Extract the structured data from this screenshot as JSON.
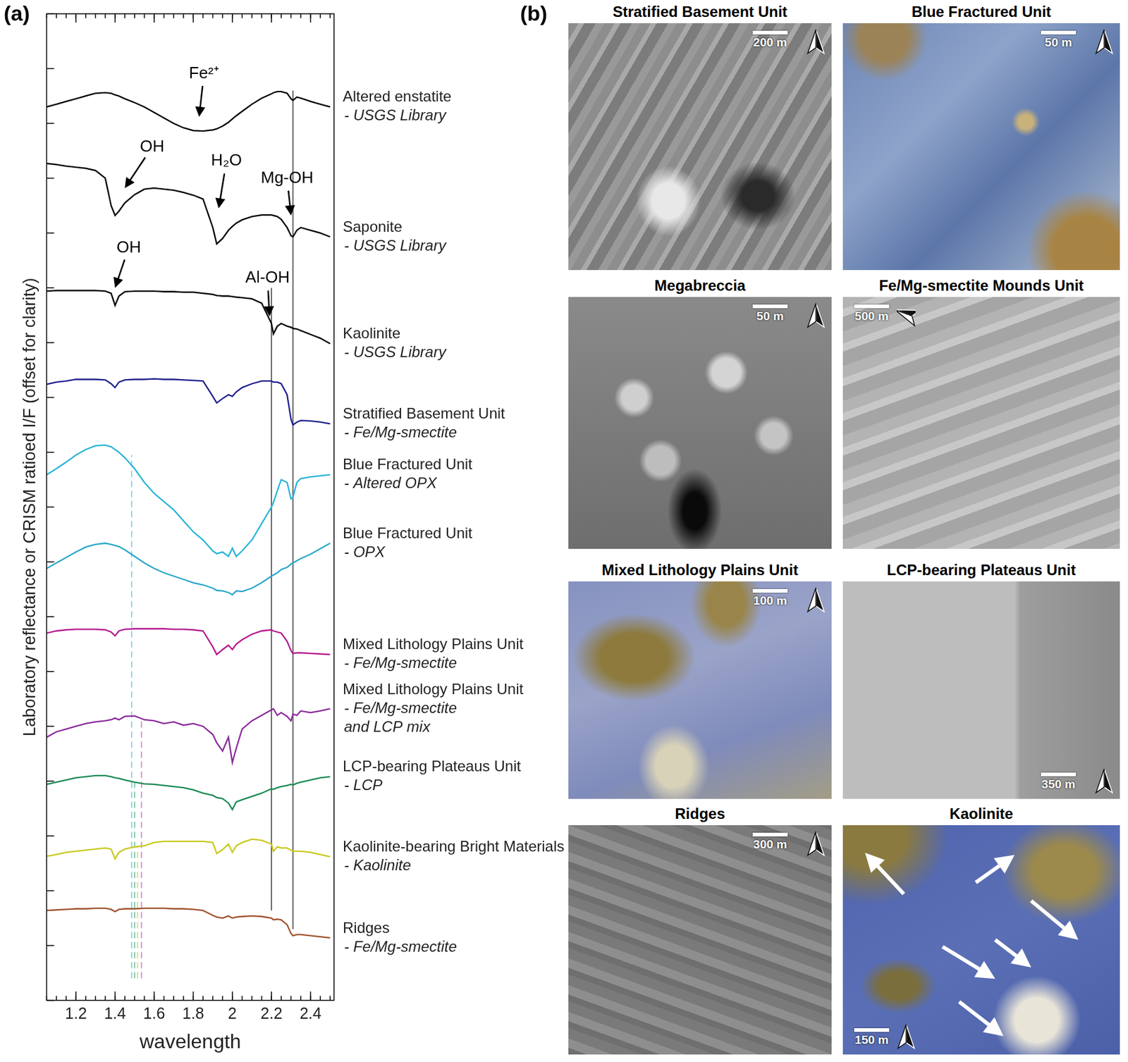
{
  "panel_labels": [
    "(a)",
    "(b)"
  ],
  "chart_data": {
    "type": "line",
    "x_label": "wavelength",
    "y_label": "Laboratory reflectance or CRISM ratioed I/F (offset for clarity)",
    "xlim": [
      1.05,
      2.52
    ],
    "xticks": [
      1.2,
      1.4,
      1.6,
      1.8,
      2.0,
      2.2,
      2.4
    ],
    "ylim": [
      0,
      18
    ],
    "yticks": [
      0,
      1,
      2,
      3,
      4,
      5,
      6,
      7,
      8,
      9,
      10,
      11,
      12,
      13,
      14,
      15,
      16,
      17,
      18
    ],
    "tick_labels": "x",
    "grid": false,
    "x": [
      1.05,
      1.1,
      1.15,
      1.2,
      1.25,
      1.3,
      1.35,
      1.38,
      1.4,
      1.42,
      1.45,
      1.5,
      1.55,
      1.6,
      1.65,
      1.7,
      1.75,
      1.8,
      1.85,
      1.9,
      1.92,
      1.95,
      1.98,
      2.0,
      2.02,
      2.05,
      2.1,
      2.15,
      2.2,
      2.21,
      2.23,
      2.25,
      2.28,
      2.3,
      2.31,
      2.33,
      2.35,
      2.4,
      2.45,
      2.5
    ],
    "series": [
      {
        "name": "Altered enstatite",
        "description": [
          "- USGS Library"
        ],
        "color": "#000000",
        "values": [
          16.3,
          16.35,
          16.4,
          16.45,
          16.5,
          16.55,
          16.56,
          16.55,
          16.52,
          16.5,
          16.45,
          16.38,
          16.3,
          16.2,
          16.1,
          16.0,
          15.92,
          15.87,
          15.86,
          15.88,
          15.9,
          15.95,
          16.02,
          16.08,
          16.14,
          16.22,
          16.35,
          16.46,
          16.54,
          16.56,
          16.58,
          16.58,
          16.55,
          16.45,
          16.42,
          16.48,
          16.46,
          16.4,
          16.35,
          16.3
        ]
      },
      {
        "name": "Saponite",
        "description": [
          "- USGS Library"
        ],
        "color": "#000000",
        "values": [
          15.27,
          15.25,
          15.22,
          15.2,
          15.18,
          15.14,
          15.0,
          14.5,
          14.32,
          14.4,
          14.55,
          14.7,
          14.8,
          14.82,
          14.8,
          14.78,
          14.74,
          14.69,
          14.62,
          14.1,
          13.8,
          13.9,
          14.05,
          14.12,
          14.18,
          14.24,
          14.3,
          14.33,
          14.33,
          14.32,
          14.3,
          14.25,
          14.1,
          13.95,
          13.93,
          14.05,
          14.1,
          14.05,
          14.0,
          13.93
        ]
      },
      {
        "name": "Kaolinite",
        "description": [
          "- USGS Library"
        ],
        "color": "#000000",
        "values": [
          12.94,
          12.95,
          12.95,
          12.95,
          12.95,
          12.95,
          12.94,
          12.9,
          12.68,
          12.85,
          12.93,
          12.94,
          12.94,
          12.94,
          12.93,
          12.93,
          12.92,
          12.92,
          12.9,
          12.88,
          12.86,
          12.85,
          12.85,
          12.84,
          12.83,
          12.82,
          12.8,
          12.72,
          12.35,
          12.16,
          12.3,
          12.35,
          12.3,
          12.28,
          12.26,
          12.25,
          12.22,
          12.15,
          12.08,
          11.98
        ]
      },
      {
        "name": "Stratified Basement Unit",
        "description": [
          "- Fe/Mg-smectite"
        ],
        "color": "#1f1f8f",
        "values": [
          11.24,
          11.28,
          11.3,
          11.33,
          11.33,
          11.33,
          11.32,
          11.25,
          11.18,
          11.28,
          11.32,
          11.33,
          11.33,
          11.34,
          11.33,
          11.33,
          11.32,
          11.31,
          11.3,
          11.02,
          10.9,
          10.98,
          11.05,
          11.02,
          11.1,
          11.18,
          11.25,
          11.3,
          11.3,
          11.28,
          11.28,
          11.25,
          11.05,
          10.6,
          10.5,
          10.55,
          10.58,
          10.57,
          10.55,
          10.52
        ]
      },
      {
        "name": "Blue Fractured Unit",
        "description": [
          "- Altered OPX"
        ],
        "color": "#27b5d8",
        "values": [
          9.59,
          9.7,
          9.82,
          9.95,
          10.05,
          10.12,
          10.13,
          10.1,
          10.05,
          10.0,
          9.9,
          9.7,
          9.45,
          9.25,
          9.1,
          8.95,
          8.75,
          8.55,
          8.4,
          8.2,
          8.15,
          8.18,
          8.1,
          8.25,
          8.1,
          8.2,
          8.4,
          8.7,
          9.0,
          9.08,
          9.3,
          9.5,
          9.45,
          9.15,
          9.18,
          9.45,
          9.52,
          9.55,
          9.57,
          9.59
        ]
      },
      {
        "name": "Blue Fractured Unit",
        "description": [
          "- OPX"
        ],
        "color": "#2aa7c9",
        "values": [
          7.88,
          7.98,
          8.08,
          8.18,
          8.27,
          8.32,
          8.34,
          8.32,
          8.3,
          8.28,
          8.22,
          8.1,
          7.98,
          7.88,
          7.8,
          7.74,
          7.68,
          7.62,
          7.58,
          7.52,
          7.48,
          7.47,
          7.44,
          7.4,
          7.47,
          7.46,
          7.52,
          7.62,
          7.74,
          7.76,
          7.8,
          7.86,
          7.9,
          7.96,
          7.98,
          8.02,
          8.06,
          8.14,
          8.24,
          8.34
        ]
      },
      {
        "name": "Mixed Lithology Plains Unit",
        "description": [
          "- Fe/Mg-smectite"
        ],
        "color": "#b5178f",
        "values": [
          6.7,
          6.74,
          6.76,
          6.77,
          6.77,
          6.77,
          6.76,
          6.72,
          6.65,
          6.74,
          6.77,
          6.78,
          6.78,
          6.78,
          6.78,
          6.77,
          6.77,
          6.76,
          6.74,
          6.45,
          6.31,
          6.4,
          6.48,
          6.4,
          6.5,
          6.58,
          6.68,
          6.74,
          6.76,
          6.74,
          6.72,
          6.7,
          6.55,
          6.38,
          6.33,
          6.34,
          6.34,
          6.33,
          6.32,
          6.31
        ]
      },
      {
        "name": "Mixed Lithology Plains Unit",
        "description": [
          "- Fe/Mg-smectite",
          "and LCP mix"
        ],
        "color": "#8a2a9b",
        "values": [
          4.8,
          4.9,
          4.95,
          5.0,
          5.05,
          5.08,
          5.1,
          5.12,
          5.15,
          5.12,
          5.18,
          5.19,
          5.12,
          5.1,
          5.05,
          5.08,
          5.02,
          5.05,
          5.0,
          4.85,
          4.7,
          4.55,
          4.8,
          4.34,
          4.6,
          4.95,
          5.1,
          5.2,
          5.3,
          5.32,
          5.2,
          5.25,
          5.18,
          5.1,
          5.22,
          5.2,
          5.28,
          5.25,
          5.28,
          5.32
        ]
      },
      {
        "name": "LCP-bearing Plateaus Unit",
        "description": [
          "- LCP"
        ],
        "color": "#1b8a55",
        "values": [
          3.94,
          3.98,
          4.02,
          4.06,
          4.08,
          4.1,
          4.1,
          4.08,
          4.06,
          4.05,
          4.02,
          3.98,
          3.95,
          3.94,
          3.92,
          3.9,
          3.88,
          3.84,
          3.78,
          3.74,
          3.7,
          3.68,
          3.6,
          3.48,
          3.62,
          3.66,
          3.72,
          3.78,
          3.86,
          3.85,
          3.88,
          3.9,
          3.92,
          3.94,
          3.93,
          3.96,
          3.98,
          4.02,
          4.06,
          4.08
        ]
      },
      {
        "name": "Kaolinite-bearing Bright Materials",
        "description": [
          "- Kaolinite"
        ],
        "color": "#c9c91e",
        "values": [
          2.63,
          2.66,
          2.7,
          2.72,
          2.74,
          2.76,
          2.78,
          2.76,
          2.58,
          2.7,
          2.76,
          2.8,
          2.82,
          2.88,
          2.9,
          2.9,
          2.9,
          2.9,
          2.9,
          2.88,
          2.68,
          2.75,
          2.85,
          2.7,
          2.82,
          2.88,
          2.94,
          2.92,
          2.85,
          2.72,
          2.8,
          2.78,
          2.78,
          2.74,
          2.72,
          2.72,
          2.72,
          2.7,
          2.66,
          2.62
        ]
      },
      {
        "name": "Ridges",
        "description": [
          "- Fe/Mg-smectite"
        ],
        "color": "#a0522d",
        "values": [
          1.64,
          1.65,
          1.66,
          1.67,
          1.67,
          1.68,
          1.68,
          1.66,
          1.62,
          1.66,
          1.67,
          1.67,
          1.68,
          1.68,
          1.68,
          1.67,
          1.67,
          1.66,
          1.64,
          1.55,
          1.52,
          1.5,
          1.54,
          1.5,
          1.52,
          1.53,
          1.54,
          1.53,
          1.5,
          1.47,
          1.48,
          1.47,
          1.38,
          1.22,
          1.18,
          1.2,
          1.2,
          1.18,
          1.16,
          1.14
        ]
      }
    ],
    "vertical_lines": [
      {
        "x": 2.2,
        "y": [
          1.64,
          13.0
        ],
        "color": "#555555",
        "line_style": "solid"
      },
      {
        "x": 2.31,
        "y": [
          1.3,
          16.6
        ],
        "color": "#555555",
        "line_style": "solid"
      },
      {
        "x": 1.485,
        "y": [
          0.4,
          9.95
        ],
        "color": "#7fd3e6",
        "line_style": "dashed"
      },
      {
        "x": 1.5,
        "y": [
          0.4,
          4.05
        ],
        "color": "#7cc29c",
        "line_style": "dashed"
      },
      {
        "x": 1.515,
        "y": [
          0.4,
          2.8
        ],
        "color": "#d8d87a",
        "line_style": "dashed"
      },
      {
        "x": 1.535,
        "y": [
          0.4,
          5.15
        ],
        "color": "#c98fd2",
        "line_style": "dashed"
      }
    ],
    "annotations": [
      {
        "text": "Fe²⁺",
        "x": 1.855,
        "y": 16.91,
        "arrow_to": [
          1.83,
          16.12
        ]
      },
      {
        "text": "OH",
        "x": 1.59,
        "y": 15.57,
        "arrow_to": [
          1.45,
          14.82
        ]
      },
      {
        "text": "H₂O",
        "x": 1.97,
        "y": 15.31,
        "arrow_to": [
          1.93,
          14.45
        ]
      },
      {
        "text": "Mg-OH",
        "x": 2.28,
        "y": 15.0,
        "arrow_to": [
          2.3,
          14.32
        ]
      },
      {
        "text": "OH",
        "x": 1.47,
        "y": 13.73,
        "arrow_to": [
          1.4,
          13.0
        ]
      },
      {
        "text": "Al-OH",
        "x": 2.18,
        "y": 13.18,
        "arrow_to": [
          2.19,
          12.48
        ]
      }
    ]
  },
  "images": [
    {
      "title": "Stratified Basement Unit",
      "scale_bar": "200 m"
    },
    {
      "title": "Blue Fractured Unit",
      "scale_bar": "50 m"
    },
    {
      "title": "Megabreccia",
      "scale_bar": "50 m"
    },
    {
      "title": "Fe/Mg-smectite Mounds Unit",
      "scale_bar": "500 m"
    },
    {
      "title": "Mixed Lithology Plains Unit",
      "scale_bar": "100 m"
    },
    {
      "title": "LCP-bearing Plateaus Unit",
      "scale_bar": "350 m"
    },
    {
      "title": "Ridges",
      "scale_bar": "300 m"
    },
    {
      "title": "Kaolinite",
      "scale_bar": "150 m"
    }
  ]
}
